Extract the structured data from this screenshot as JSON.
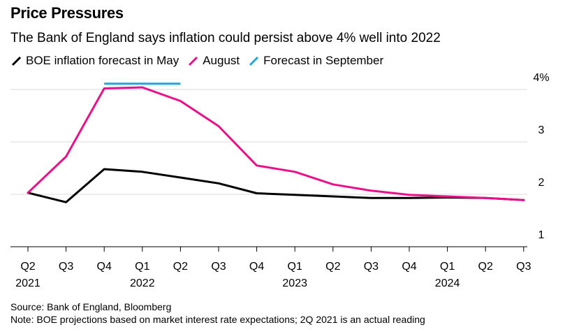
{
  "title": "Price Pressures",
  "subtitle": "The Bank of England says inflation could persist above 4% well into 2022",
  "legend": [
    {
      "label": "BOE inflation forecast in May",
      "color": "#000000"
    },
    {
      "label": "August",
      "color": "#ee0e8a"
    },
    {
      "label": "Forecast in September",
      "color": "#1ca7e0"
    }
  ],
  "source": "Source: Bank of England, Bloomberg",
  "note": "Note: BOE projections based on market interest rate expectations; 2Q 2021 is an actual reading",
  "chart_data": {
    "type": "line",
    "categories": [
      "Q2",
      "Q3",
      "Q4",
      "Q1",
      "Q2",
      "Q3",
      "Q4",
      "Q1",
      "Q2",
      "Q3",
      "Q4",
      "Q1",
      "Q2",
      "Q3"
    ],
    "year_labels": [
      {
        "index": 0,
        "label": "2021"
      },
      {
        "index": 3,
        "label": "2022"
      },
      {
        "index": 7,
        "label": "2023"
      },
      {
        "index": 11,
        "label": "2024"
      }
    ],
    "ylim": [
      1,
      4
    ],
    "yticks": [
      {
        "value": 4,
        "label": "4%"
      },
      {
        "value": 3,
        "label": "3"
      },
      {
        "value": 2,
        "label": "2"
      },
      {
        "value": 1,
        "label": "1"
      }
    ],
    "grid": true,
    "series": [
      {
        "name": "BOE inflation forecast in May",
        "color": "#000000",
        "values": [
          2.03,
          1.85,
          2.48,
          2.43,
          2.32,
          2.21,
          2.02,
          1.99,
          1.96,
          1.93,
          1.93,
          1.94,
          1.93,
          1.89
        ]
      },
      {
        "name": "August",
        "color": "#ee0e8a",
        "values": [
          2.03,
          2.72,
          4.02,
          4.04,
          3.78,
          3.3,
          2.55,
          2.43,
          2.19,
          2.07,
          1.99,
          1.96,
          1.93,
          1.89
        ]
      },
      {
        "name": "Forecast in September",
        "color": "#1ca7e0",
        "x_range": [
          2,
          4
        ],
        "value": 4.11
      }
    ]
  }
}
